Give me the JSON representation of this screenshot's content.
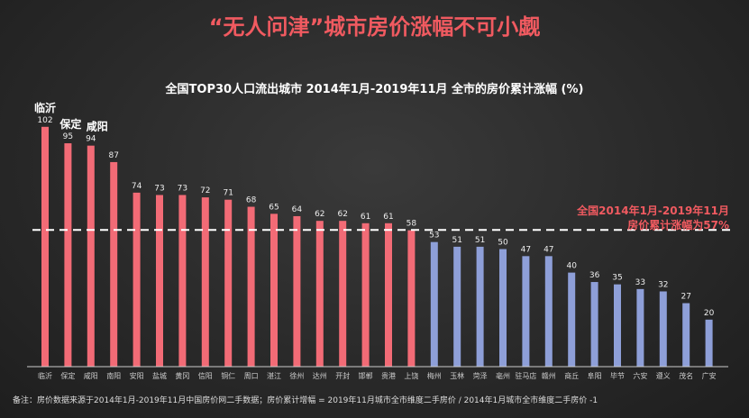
{
  "title": "“无人问津”城市房价涨幅不可小觑",
  "footnote": "备注：房价数据来源于2014年1月-2019年11月中国房价网二手数据；房价累计增幅 = 2019年11月城市全市维度二手房价 / 2014年1月城市全市维度二手房价 -1",
  "chart_data": {
    "type": "bar",
    "title": "全国TOP30人口流出城市 2014年1月-2019年11月 全市的房价累计涨幅 (%)",
    "categories": [
      "临沂",
      "保定",
      "咸阳",
      "南阳",
      "安阳",
      "盐城",
      "黄冈",
      "信阳",
      "铜仁",
      "周口",
      "湛江",
      "徐州",
      "达州",
      "开封",
      "邯郸",
      "贵港",
      "上饶",
      "梅州",
      "玉林",
      "菏泽",
      "亳州",
      "驻马店",
      "赣州",
      "商丘",
      "阜阳",
      "毕节",
      "六安",
      "遵义",
      "茂名",
      "广安"
    ],
    "values": [
      102,
      95,
      94,
      87,
      74,
      73,
      73,
      72,
      71,
      68,
      65,
      64,
      62,
      62,
      61,
      61,
      58,
      53,
      51,
      51,
      50,
      47,
      47,
      40,
      36,
      35,
      33,
      32,
      27,
      20
    ],
    "ylim": [
      0,
      110
    ],
    "reference_line": {
      "value": 57,
      "label_line1": "全国2014年1月-2019年11月",
      "label_line2": "房价累计涨幅为57%"
    },
    "highlight_labels": [
      "临沂",
      "保定",
      "咸阳"
    ],
    "colors": {
      "above": "#f26b76",
      "below": "#8e9fd8",
      "title": "#f05a60"
    }
  }
}
